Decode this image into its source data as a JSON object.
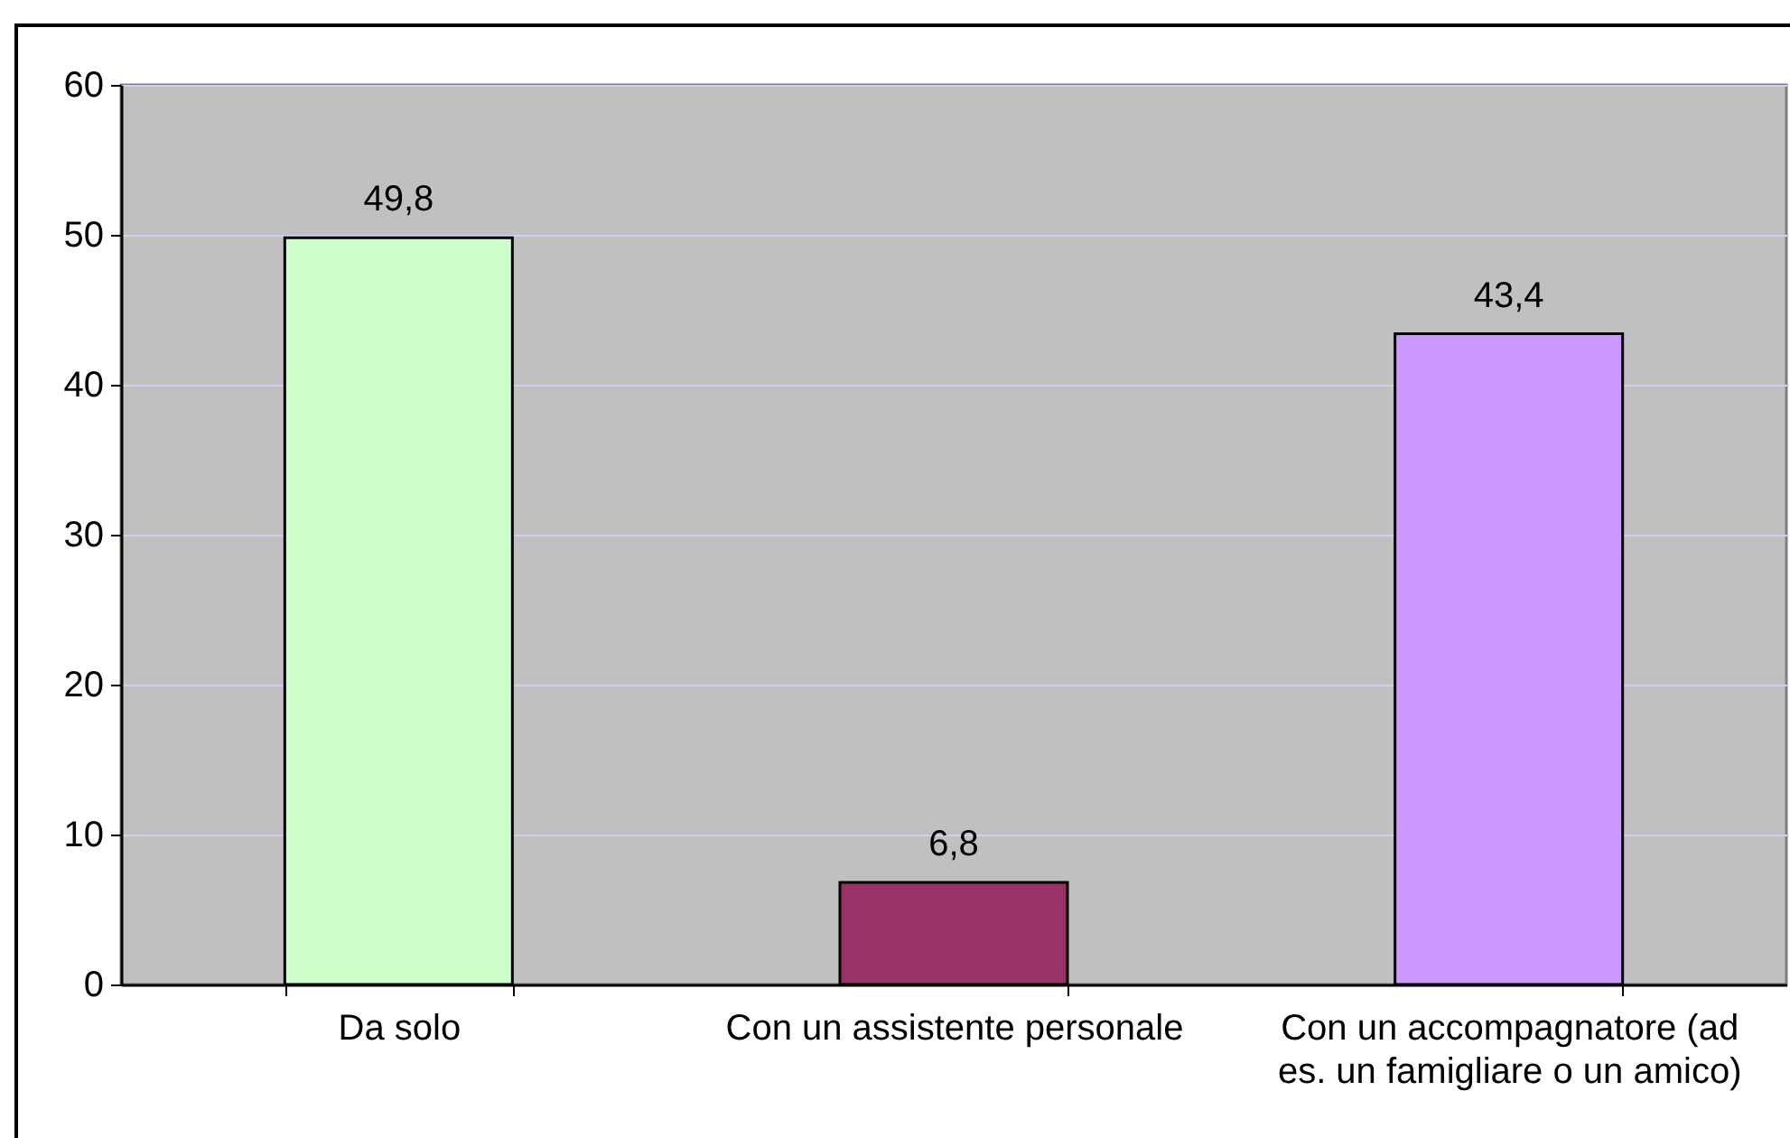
{
  "chart_data": {
    "type": "bar",
    "categories": [
      "Da solo",
      "Con un assistente personale",
      "Con un accompagnatore (ad es. un famigliare o un amico)"
    ],
    "values": [
      49.8,
      6.8,
      43.4
    ],
    "colors": [
      "#ccffcc",
      "#993366",
      "#cc99ff"
    ],
    "value_labels": [
      "49,8",
      "6,8",
      "43,4"
    ],
    "ylim": [
      0,
      60
    ],
    "yticks": [
      0,
      10,
      20,
      30,
      40,
      50,
      60
    ],
    "grid": "y",
    "legend": false
  }
}
